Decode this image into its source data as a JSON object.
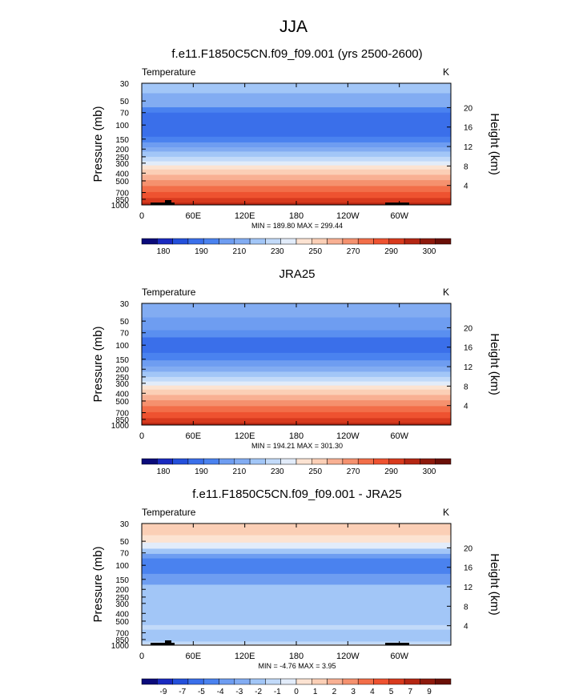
{
  "page": {
    "title": "JJA"
  },
  "chart_data": [
    {
      "type": "heatmap",
      "title": "f.e11.F1850C5CN.f09_f09.001 (yrs 2500-2600)",
      "variable": "Temperature",
      "units": "K",
      "ylabel": "Pressure (mb)",
      "ylabel_right": "Height (km)",
      "x_ticks": [
        "0",
        "60E",
        "120E",
        "180",
        "120W",
        "60W"
      ],
      "pressure_ticks": [
        "30",
        "50",
        "70",
        "100",
        "150",
        "200",
        "250",
        "300",
        "400",
        "500",
        "700",
        "850",
        "1000"
      ],
      "height_ticks": [
        "20",
        "16",
        "12",
        "8",
        "4"
      ],
      "stats": "MIN = 189.80  MAX = 299.44",
      "colorbar_labels": [
        "180",
        "190",
        "210",
        "230",
        "250",
        "270",
        "290",
        "300"
      ],
      "bands": [
        {
          "p": 30,
          "color": "#a2c6f7"
        },
        {
          "p": 40,
          "color": "#82acf2"
        },
        {
          "p": 60,
          "color": "#4a82ef"
        },
        {
          "p": 70,
          "color": "#3a6fea"
        },
        {
          "p": 140,
          "color": "#4a82ef"
        },
        {
          "p": 165,
          "color": "#6e9df1"
        },
        {
          "p": 190,
          "color": "#82acf2"
        },
        {
          "p": 215,
          "color": "#a2c6f7"
        },
        {
          "p": 250,
          "color": "#c2daf9"
        },
        {
          "p": 285,
          "color": "#e2ecfa"
        },
        {
          "p": 320,
          "color": "#fce3d2"
        },
        {
          "p": 360,
          "color": "#fbcfb6"
        },
        {
          "p": 420,
          "color": "#f8b093"
        },
        {
          "p": 490,
          "color": "#f5916e"
        },
        {
          "p": 580,
          "color": "#f26e49"
        },
        {
          "p": 690,
          "color": "#ee5230"
        },
        {
          "p": 820,
          "color": "#d83a1e"
        },
        {
          "p": 940,
          "color": "#b42613"
        }
      ]
    },
    {
      "type": "heatmap",
      "title": "JRA25",
      "variable": "Temperature",
      "units": "K",
      "ylabel": "Pressure (mb)",
      "ylabel_right": "Height (km)",
      "x_ticks": [
        "0",
        "60E",
        "120E",
        "180",
        "120W",
        "60W"
      ],
      "pressure_ticks": [
        "30",
        "50",
        "70",
        "100",
        "150",
        "200",
        "250",
        "300",
        "400",
        "500",
        "700",
        "850",
        "1000"
      ],
      "height_ticks": [
        "20",
        "16",
        "12",
        "8",
        "4"
      ],
      "stats": "MIN = 194.21  MAX = 301.30",
      "colorbar_labels": [
        "180",
        "190",
        "210",
        "230",
        "250",
        "270",
        "290",
        "300"
      ],
      "bands": [
        {
          "p": 30,
          "color": "#82acf2"
        },
        {
          "p": 45,
          "color": "#6e9df1"
        },
        {
          "p": 65,
          "color": "#5a8ff0"
        },
        {
          "p": 80,
          "color": "#3a6fea"
        },
        {
          "p": 125,
          "color": "#4a82ef"
        },
        {
          "p": 155,
          "color": "#6e9df1"
        },
        {
          "p": 185,
          "color": "#82acf2"
        },
        {
          "p": 215,
          "color": "#a2c6f7"
        },
        {
          "p": 250,
          "color": "#c2daf9"
        },
        {
          "p": 285,
          "color": "#e2ecfa"
        },
        {
          "p": 320,
          "color": "#fce3d2"
        },
        {
          "p": 360,
          "color": "#fbcfb6"
        },
        {
          "p": 420,
          "color": "#f8b093"
        },
        {
          "p": 490,
          "color": "#f5916e"
        },
        {
          "p": 580,
          "color": "#f26e49"
        },
        {
          "p": 690,
          "color": "#ee5230"
        },
        {
          "p": 820,
          "color": "#d83a1e"
        },
        {
          "p": 940,
          "color": "#b42613"
        }
      ]
    },
    {
      "type": "heatmap",
      "title": "f.e11.F1850C5CN.f09_f09.001 - JRA25",
      "variable": "Temperature",
      "units": "K",
      "ylabel": "Pressure (mb)",
      "ylabel_right": "Height (km)",
      "x_ticks": [
        "0",
        "60E",
        "120E",
        "180",
        "120W",
        "60W"
      ],
      "pressure_ticks": [
        "30",
        "50",
        "70",
        "100",
        "150",
        "200",
        "250",
        "300",
        "400",
        "500",
        "700",
        "850",
        "1000"
      ],
      "height_ticks": [
        "20",
        "16",
        "12",
        "8",
        "4"
      ],
      "stats": "MIN = -4.76  MAX =  3.95",
      "colorbar_labels": [
        "-9",
        "-7",
        "-5",
        "-4",
        "-3",
        "-2",
        "-1",
        "0",
        "1",
        "2",
        "3",
        "4",
        "5",
        "7",
        "9"
      ],
      "bands": [
        {
          "p": 30,
          "color": "#fbcfb6"
        },
        {
          "p": 42,
          "color": "#fce3d2"
        },
        {
          "p": 52,
          "color": "#e2ecfa"
        },
        {
          "p": 62,
          "color": "#a2c6f7"
        },
        {
          "p": 72,
          "color": "#6e9df1"
        },
        {
          "p": 82,
          "color": "#4a82ef"
        },
        {
          "p": 128,
          "color": "#6e9df1"
        },
        {
          "p": 175,
          "color": "#a2c6f7"
        },
        {
          "p": 560,
          "color": "#c2daf9"
        },
        {
          "p": 640,
          "color": "#a2c6f7"
        },
        {
          "p": 900,
          "color": "#c2daf9"
        },
        {
          "p": 980,
          "color": "#fce3d2"
        }
      ]
    }
  ],
  "colors": {
    "colorbar_nofill": "#ffffff",
    "land_mask": "#000000",
    "axis": "#000000",
    "colorbar_temperature": [
      "#0b0b7a",
      "#1a2ac0",
      "#2450db",
      "#3a6fea",
      "#4a82ef",
      "#6e9df1",
      "#82acf2",
      "#a2c6f7",
      "#c2daf9",
      "#e2ecfa",
      "#fce3d2",
      "#fbcfb6",
      "#f8b093",
      "#f5916e",
      "#f26e49",
      "#ee5230",
      "#d83a1e",
      "#b42613",
      "#8e1a0d",
      "#6a0f07"
    ],
    "colorbar_difference": [
      "#0b0b7a",
      "#1a2ac0",
      "#2450db",
      "#3a6fea",
      "#4a82ef",
      "#6e9df1",
      "#82acf2",
      "#a2c6f7",
      "#c2daf9",
      "#e2ecfa",
      "#fce3d2",
      "#fbcfb6",
      "#f8b093",
      "#f5916e",
      "#f26e49",
      "#ee5230",
      "#d83a1e",
      "#b42613",
      "#8e1a0d",
      "#6a0f07"
    ]
  }
}
